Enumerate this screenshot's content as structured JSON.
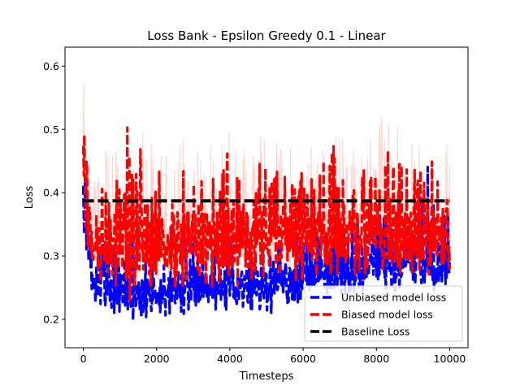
{
  "chart_data": {
    "type": "line",
    "title": "Loss Bank - Epsilon Greedy 0.1 - Linear",
    "xlabel": "Timesteps",
    "ylabel": "Loss",
    "xlim": [
      -500,
      10500
    ],
    "ylim": [
      0.155,
      0.63
    ],
    "xticks": [
      0,
      2000,
      4000,
      6000,
      8000,
      10000
    ],
    "xtick_labels": [
      "0",
      "2000",
      "4000",
      "6000",
      "8000",
      "10000"
    ],
    "yticks": [
      0.2,
      0.3,
      0.4,
      0.5,
      0.6
    ],
    "ytick_labels": [
      "0.2",
      "0.3",
      "0.4",
      "0.5",
      "0.6"
    ],
    "grid": false,
    "legend_position": "lower-right",
    "series": [
      {
        "name": "Unbiased model loss",
        "color": "#0000ff",
        "style": "dashed",
        "x": [
          0,
          100,
          200,
          400,
          600,
          800,
          1000,
          1200,
          1400,
          1600,
          1800,
          2000,
          2200,
          2400,
          2600,
          2800,
          3000,
          3200,
          3400,
          3600,
          3800,
          4000,
          4200,
          4400,
          4600,
          4800,
          5000,
          5200,
          5400,
          5600,
          5800,
          6000,
          6200,
          6400,
          6600,
          6800,
          7000,
          7200,
          7400,
          7600,
          7800,
          8000,
          8200,
          8400,
          8600,
          8800,
          9000,
          9200,
          9400,
          9600,
          9800,
          10000
        ],
        "center": [
          0.39,
          0.33,
          0.27,
          0.26,
          0.255,
          0.25,
          0.25,
          0.245,
          0.245,
          0.24,
          0.24,
          0.245,
          0.245,
          0.25,
          0.25,
          0.25,
          0.25,
          0.25,
          0.25,
          0.25,
          0.25,
          0.255,
          0.25,
          0.255,
          0.255,
          0.255,
          0.255,
          0.255,
          0.26,
          0.26,
          0.26,
          0.265,
          0.27,
          0.27,
          0.275,
          0.275,
          0.28,
          0.28,
          0.285,
          0.285,
          0.29,
          0.29,
          0.29,
          0.29,
          0.29,
          0.29,
          0.29,
          0.29,
          0.29,
          0.29,
          0.29,
          0.29
        ],
        "low": [
          0.33,
          0.28,
          0.23,
          0.22,
          0.215,
          0.21,
          0.205,
          0.2,
          0.195,
          0.19,
          0.2,
          0.205,
          0.205,
          0.205,
          0.205,
          0.205,
          0.21,
          0.21,
          0.21,
          0.21,
          0.21,
          0.21,
          0.21,
          0.21,
          0.21,
          0.215,
          0.21,
          0.21,
          0.22,
          0.22,
          0.22,
          0.225,
          0.23,
          0.23,
          0.235,
          0.235,
          0.235,
          0.235,
          0.24,
          0.24,
          0.245,
          0.245,
          0.245,
          0.245,
          0.245,
          0.245,
          0.245,
          0.245,
          0.245,
          0.245,
          0.245,
          0.25
        ],
        "high": [
          0.47,
          0.4,
          0.34,
          0.33,
          0.32,
          0.32,
          0.33,
          0.33,
          0.33,
          0.33,
          0.32,
          0.33,
          0.32,
          0.32,
          0.32,
          0.32,
          0.32,
          0.32,
          0.32,
          0.32,
          0.32,
          0.32,
          0.32,
          0.32,
          0.33,
          0.32,
          0.32,
          0.33,
          0.33,
          0.33,
          0.33,
          0.34,
          0.34,
          0.34,
          0.35,
          0.35,
          0.35,
          0.35,
          0.36,
          0.36,
          0.36,
          0.37,
          0.37,
          0.37,
          0.37,
          0.37,
          0.38,
          0.38,
          0.5,
          0.38,
          0.38,
          0.36
        ]
      },
      {
        "name": "Biased model loss",
        "color": "#ff0000",
        "band_color": "#ffd6d0",
        "style": "dashed",
        "x": [
          0,
          100,
          200,
          400,
          600,
          800,
          1000,
          1200,
          1400,
          1600,
          1800,
          2000,
          2200,
          2400,
          2600,
          2800,
          3000,
          3200,
          3400,
          3600,
          3800,
          4000,
          4200,
          4400,
          4600,
          4800,
          5000,
          5200,
          5400,
          5600,
          5800,
          6000,
          6200,
          6400,
          6600,
          6800,
          7000,
          7200,
          7400,
          7600,
          7800,
          8000,
          8200,
          8400,
          8600,
          8800,
          9000,
          9200,
          9400,
          9600,
          9800,
          10000
        ],
        "center": [
          0.44,
          0.38,
          0.34,
          0.33,
          0.33,
          0.33,
          0.33,
          0.325,
          0.325,
          0.325,
          0.325,
          0.325,
          0.325,
          0.33,
          0.33,
          0.33,
          0.33,
          0.33,
          0.33,
          0.33,
          0.33,
          0.33,
          0.33,
          0.33,
          0.33,
          0.33,
          0.33,
          0.33,
          0.33,
          0.33,
          0.33,
          0.33,
          0.33,
          0.33,
          0.33,
          0.33,
          0.33,
          0.33,
          0.33,
          0.33,
          0.33,
          0.33,
          0.33,
          0.33,
          0.33,
          0.33,
          0.33,
          0.33,
          0.33,
          0.33,
          0.33,
          0.33
        ],
        "low": [
          0.37,
          0.32,
          0.27,
          0.26,
          0.26,
          0.25,
          0.25,
          0.21,
          0.24,
          0.24,
          0.24,
          0.25,
          0.25,
          0.25,
          0.25,
          0.25,
          0.25,
          0.25,
          0.25,
          0.25,
          0.25,
          0.25,
          0.25,
          0.25,
          0.26,
          0.26,
          0.26,
          0.26,
          0.26,
          0.26,
          0.26,
          0.26,
          0.26,
          0.26,
          0.27,
          0.27,
          0.27,
          0.27,
          0.27,
          0.27,
          0.27,
          0.27,
          0.27,
          0.27,
          0.27,
          0.27,
          0.27,
          0.27,
          0.27,
          0.27,
          0.27,
          0.27
        ],
        "high": [
          0.53,
          0.47,
          0.43,
          0.42,
          0.42,
          0.43,
          0.44,
          0.51,
          0.44,
          0.49,
          0.45,
          0.43,
          0.44,
          0.44,
          0.44,
          0.44,
          0.44,
          0.44,
          0.43,
          0.44,
          0.48,
          0.47,
          0.44,
          0.44,
          0.45,
          0.48,
          0.44,
          0.44,
          0.44,
          0.44,
          0.44,
          0.44,
          0.44,
          0.44,
          0.46,
          0.48,
          0.44,
          0.44,
          0.43,
          0.44,
          0.44,
          0.44,
          0.51,
          0.44,
          0.47,
          0.44,
          0.44,
          0.45,
          0.44,
          0.48,
          0.44,
          0.44
        ],
        "band_high": [
          0.58,
          0.52,
          0.48,
          0.47,
          0.47,
          0.47,
          0.48,
          0.55,
          0.48,
          0.5,
          0.48,
          0.48,
          0.48,
          0.48,
          0.48,
          0.49,
          0.49,
          0.48,
          0.48,
          0.48,
          0.49,
          0.53,
          0.48,
          0.48,
          0.48,
          0.49,
          0.48,
          0.48,
          0.48,
          0.48,
          0.49,
          0.49,
          0.49,
          0.49,
          0.5,
          0.5,
          0.49,
          0.49,
          0.48,
          0.49,
          0.49,
          0.49,
          0.56,
          0.49,
          0.51,
          0.49,
          0.49,
          0.5,
          0.49,
          0.52,
          0.49,
          0.48
        ]
      },
      {
        "name": "Baseline Loss",
        "color": "#000000",
        "style": "dashed",
        "x": [
          0,
          10000
        ],
        "values": [
          0.387,
          0.387
        ]
      }
    ]
  }
}
